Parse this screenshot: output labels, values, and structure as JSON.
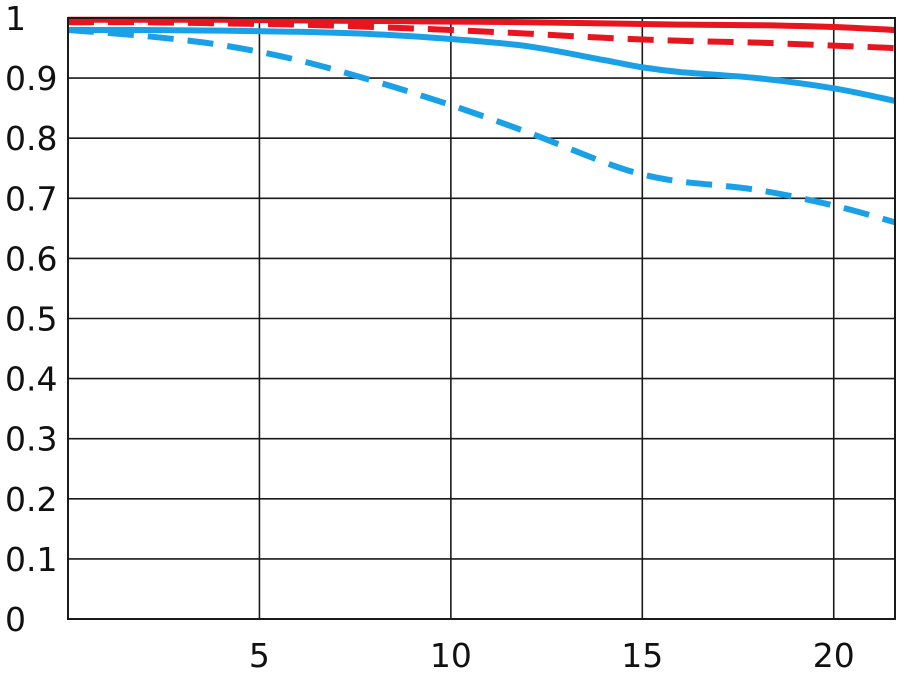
{
  "chart_data": {
    "type": "line",
    "title": "",
    "xlabel": "",
    "ylabel": "",
    "xlim": [
      0,
      21.6
    ],
    "ylim": [
      0,
      1
    ],
    "x_ticks": [
      5,
      10,
      15,
      20
    ],
    "y_ticks": [
      0,
      0.1,
      0.2,
      0.3,
      0.4,
      0.5,
      0.6,
      0.7,
      0.8,
      0.9,
      1
    ],
    "x_tick_labels": [
      "5",
      "10",
      "15",
      "20"
    ],
    "y_tick_labels": [
      "0",
      "0.1",
      "0.2",
      "0.3",
      "0.4",
      "0.5",
      "0.6",
      "0.7",
      "0.8",
      "0.9",
      "1"
    ],
    "grid": true,
    "legend": "none",
    "series": [
      {
        "color": "#e8141e",
        "style": "solid",
        "x": [
          0,
          2,
          4,
          6,
          8,
          10,
          12,
          14,
          16,
          18,
          20,
          21.6
        ],
        "y": [
          0.997,
          0.997,
          0.997,
          0.996,
          0.995,
          0.994,
          0.993,
          0.991,
          0.989,
          0.988,
          0.985,
          0.98
        ]
      },
      {
        "color": "#e8141e",
        "style": "dashed",
        "x": [
          0,
          2,
          4,
          6,
          8,
          10,
          12,
          14,
          16,
          18,
          20,
          21.6
        ],
        "y": [
          0.993,
          0.993,
          0.991,
          0.989,
          0.985,
          0.98,
          0.974,
          0.967,
          0.962,
          0.959,
          0.954,
          0.95
        ]
      },
      {
        "color": "#1aa0e6",
        "style": "solid",
        "x": [
          0,
          2,
          4,
          6,
          8,
          10,
          12,
          14,
          15,
          16,
          18,
          20,
          21.6
        ],
        "y": [
          0.98,
          0.98,
          0.979,
          0.977,
          0.973,
          0.965,
          0.953,
          0.93,
          0.918,
          0.91,
          0.9,
          0.883,
          0.862
        ]
      },
      {
        "color": "#1aa0e6",
        "style": "dashed",
        "x": [
          0,
          2,
          4,
          6,
          8,
          10,
          12,
          14,
          15,
          16,
          18,
          20,
          21.6
        ],
        "y": [
          0.98,
          0.97,
          0.955,
          0.93,
          0.895,
          0.855,
          0.81,
          0.76,
          0.74,
          0.728,
          0.714,
          0.688,
          0.66
        ]
      }
    ]
  }
}
